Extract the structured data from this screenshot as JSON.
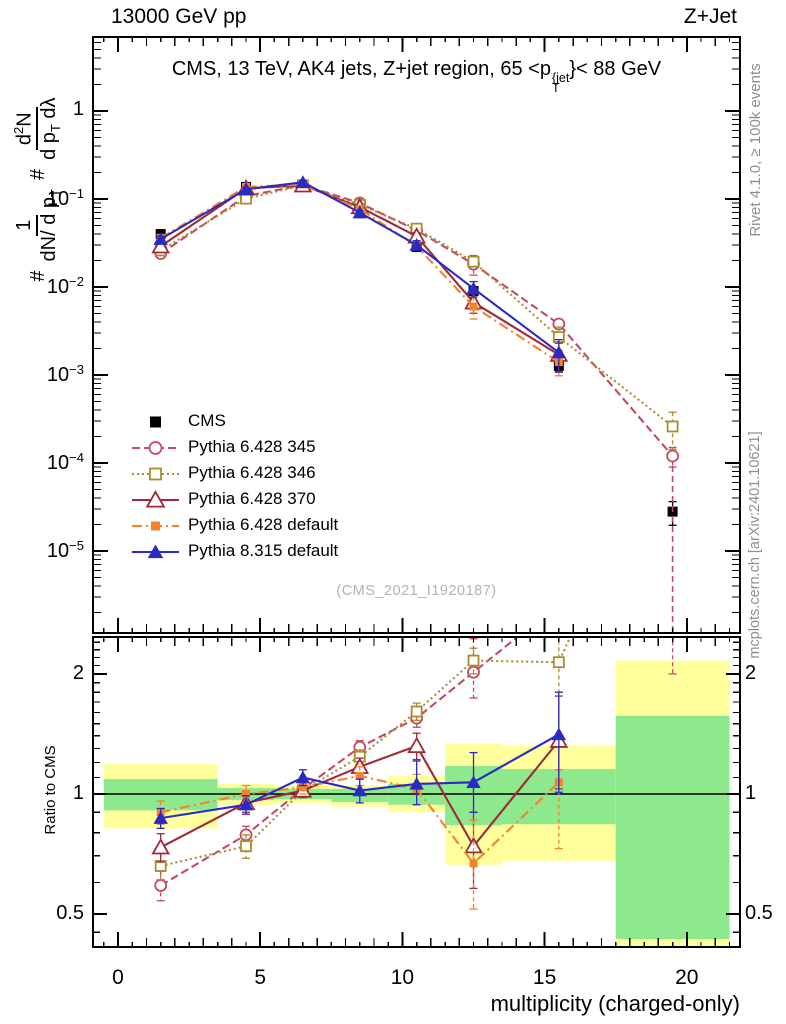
{
  "page": {
    "header_left": "13000 GeV pp",
    "header_right": "Z+Jet"
  },
  "panel_title": {
    "part1": "CMS, 13 TeV, AK4 jets, Z+jet region, 65 <p",
    "sup": "{jet",
    "sub": "T",
    "part2": "}< 88 GeV"
  },
  "ylabel_formula": {
    "hash1": "#",
    "frac1_num": "1",
    "frac1_den_pre": "dN/ d p",
    "frac1_den_sub": "T",
    "hash2": "#",
    "frac2_num_pre": "d",
    "frac2_num_sup": "2",
    "frac2_num_post": "N",
    "frac2_den_pre": "d p",
    "frac2_den_sub": "T",
    "frac2_den_post": " dλ"
  },
  "watermark": "(CMS_2021_I1920187)",
  "right_margin": {
    "top": "Rivet 4.1.0, ≥ 100k events",
    "bottom": "mcplots.cern.ch [arXiv:2401.10621]"
  },
  "ratio_ylabel": "Ratio to CMS",
  "xlabel": "multiplicity (charged-only)",
  "legend": {
    "items": [
      {
        "label": "CMS"
      },
      {
        "label": "Pythia 6.428 345"
      },
      {
        "label": "Pythia 6.428 346"
      },
      {
        "label": "Pythia 6.428 370"
      },
      {
        "label": "Pythia 6.428 default"
      },
      {
        "label": "Pythia 8.315 default"
      }
    ]
  },
  "colors": {
    "band_yellow": "#ffff9c",
    "band_green": "#8ee88e",
    "frame": "#000000",
    "gray_text": "#8f8f8f",
    "watermark": "#b3b3b3"
  },
  "chart_data": {
    "type": "line",
    "title": "CMS, 13 TeV, AK4 jets, Z+jet region, 65 < pT(jet) < 88 GeV",
    "xlabel": "multiplicity (charged-only)",
    "xlim": [
      -0.88,
      21.87
    ],
    "xticks_major": [
      0,
      5,
      10,
      15,
      20
    ],
    "x": [
      1.5,
      4.5,
      6.5,
      8.5,
      10.5,
      12.5,
      15.5,
      19.5
    ],
    "top_panel": {
      "ylog": true,
      "ylim": [
        1.17e-06,
        6.93
      ],
      "ytick_decades": [
        0,
        -1,
        -2,
        -3,
        -4,
        -5
      ],
      "series": [
        {
          "name": "CMS",
          "color": "#000000",
          "marker": "square_filled",
          "msize": 10,
          "line": "none",
          "y": [
            0.04,
            0.137,
            0.141,
            0.069,
            0.0285,
            0.009,
            0.00127,
            2.8e-05
          ],
          "errpct": [
            10,
            5,
            5,
            5,
            8,
            10,
            15,
            30
          ]
        },
        {
          "name": "Pythia 6.428 345",
          "color": "#c24a63",
          "marker": "circle_open",
          "msize": 11,
          "line": "dashed",
          "y": [
            0.024,
            0.108,
            0.144,
            0.09,
            0.044,
            0.0182,
            0.0038,
            0.00012
          ],
          "errpct": [
            8,
            5,
            4,
            5,
            8,
            25,
            10,
            25
          ],
          "long_lower_at": 7
        },
        {
          "name": "Pythia 6.428 346",
          "color": "#a98c2f",
          "marker": "square_open",
          "msize": 10,
          "line": "dotted",
          "y": [
            0.026,
            0.101,
            0.143,
            0.086,
            0.046,
            0.0194,
            0.0027,
            0.00026
          ],
          "errpct": [
            8,
            6,
            4,
            5,
            8,
            12,
            30,
            45
          ]
        },
        {
          "name": "Pythia 6.428 370",
          "color": "#9f2936",
          "marker": "triangle_open",
          "msize": 13,
          "line": "solid",
          "y": [
            0.029,
            0.132,
            0.143,
            0.081,
            0.0376,
            0.0067,
            0.0017
          ],
          "errpct": [
            10,
            6,
            4,
            6,
            10,
            25,
            35
          ]
        },
        {
          "name": "Pythia 6.428 default",
          "color": "#f5812b",
          "marker": "square_filled",
          "msize": 8,
          "line": "dashdot",
          "y": [
            0.036,
            0.137,
            0.146,
            0.077,
            0.029,
            0.006,
            0.0014
          ],
          "errpct": [
            10,
            6,
            4,
            6,
            8,
            28,
            30
          ]
        },
        {
          "name": "Pythia 8.315 default",
          "color": "#2a2ac4",
          "marker": "triangle_filled",
          "msize": 12,
          "line": "solid",
          "y": [
            0.035,
            0.129,
            0.155,
            0.07,
            0.03,
            0.0096,
            0.0018
          ],
          "errpct": [
            8,
            5,
            4,
            6,
            12,
            20,
            40
          ]
        }
      ]
    },
    "ratio_panel": {
      "ylog": true,
      "ylim": [
        0.4135,
        2.475
      ],
      "yticks": [
        {
          "v": 0.5,
          "label": "0.5"
        },
        {
          "v": 1,
          "label": "1"
        },
        {
          "v": 2,
          "label": "2"
        }
      ],
      "ref_line": 1,
      "band_edges": [
        -0.5,
        3.5,
        5.5,
        7.5,
        9.5,
        11.5,
        13.5,
        17.5,
        21.5
      ],
      "yellow": [
        [
          0.82,
          1.19
        ],
        [
          0.94,
          1.06
        ],
        [
          0.95,
          1.05
        ],
        [
          0.93,
          1.05
        ],
        [
          0.9,
          1.11
        ],
        [
          0.665,
          1.335
        ],
        [
          0.68,
          1.32
        ],
        [
          0.404,
          2.16
        ]
      ],
      "green": [
        [
          0.91,
          1.09
        ],
        [
          0.965,
          1.035
        ],
        [
          0.97,
          1.03
        ],
        [
          0.955,
          1.03
        ],
        [
          0.94,
          1.06
        ],
        [
          0.835,
          1.175
        ],
        [
          0.84,
          1.155
        ],
        [
          0.433,
          1.57
        ]
      ],
      "series": [
        {
          "name": "Pythia 6.428 345",
          "ratio": [
            0.59,
            0.79,
            1.03,
            1.31,
            1.55,
            2.02,
            3.0,
            4.3
          ],
          "eyl": [
            0.05,
            0.04,
            0.04,
            0.05,
            0.08,
            0.28,
            0.3,
            2.3
          ],
          "eyh": [
            0.05,
            0.04,
            0.04,
            0.05,
            0.08,
            0.43,
            0.3,
            0.5
          ]
        },
        {
          "name": "Pythia 6.428 346",
          "ratio": [
            0.66,
            0.74,
            1.02,
            1.24,
            1.61,
            2.16,
            2.14,
            9.3
          ],
          "eyl": [
            0.05,
            0.05,
            0.04,
            0.05,
            0.08,
            0.16,
            0.34,
            1.0
          ],
          "eyh": [
            0.05,
            0.05,
            0.04,
            0.05,
            0.08,
            0.16,
            0.6,
            1.0
          ]
        },
        {
          "name": "Pythia 6.428 370",
          "ratio": [
            0.735,
            0.95,
            1.02,
            1.17,
            1.32,
            0.74,
            1.36
          ],
          "eyl": [
            0.06,
            0.05,
            0.04,
            0.06,
            0.1,
            0.16,
            0.33
          ],
          "eyh": [
            0.06,
            0.05,
            0.04,
            0.06,
            0.1,
            0.16,
            0.4
          ]
        },
        {
          "name": "Pythia 6.428 default",
          "ratio": [
            0.9,
            1.0,
            1.04,
            1.11,
            1.03,
            0.67,
            1.07
          ],
          "eyl": [
            0.06,
            0.05,
            0.04,
            0.06,
            0.09,
            0.155,
            0.34
          ],
          "eyh": [
            0.06,
            0.05,
            0.04,
            0.06,
            0.09,
            0.19,
            0.08
          ]
        },
        {
          "name": "Pythia 8.315 default",
          "ratio": [
            0.87,
            0.94,
            1.1,
            1.02,
            1.06,
            1.07,
            1.41
          ],
          "eyl": [
            0.05,
            0.05,
            0.05,
            0.07,
            0.12,
            0.17,
            0.4
          ],
          "eyh": [
            0.05,
            0.05,
            0.05,
            0.07,
            0.15,
            0.2,
            0.39
          ]
        }
      ]
    }
  }
}
